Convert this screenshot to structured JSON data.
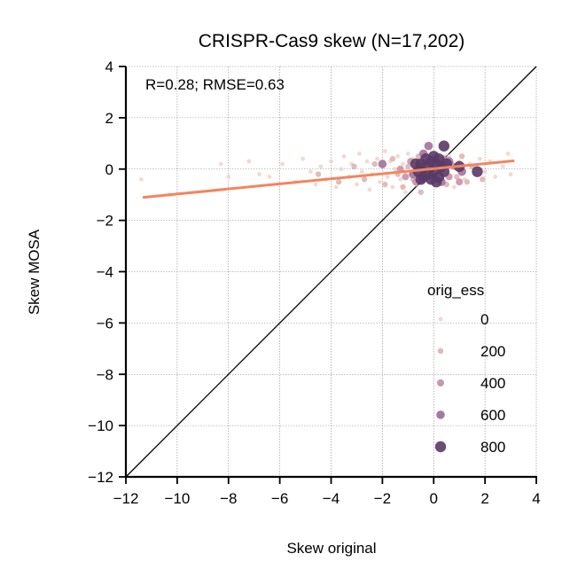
{
  "chart_data": {
    "type": "scatter",
    "title": "CRISPR-Cas9 skew (N=17,202)",
    "xlabel": "Skew original",
    "ylabel": "Skew MOSA",
    "xlim": [
      -12,
      4
    ],
    "ylim": [
      -12,
      4
    ],
    "xticks": [
      -12,
      -10,
      -8,
      -6,
      -4,
      -2,
      0,
      2,
      4
    ],
    "yticks": [
      -12,
      -10,
      -8,
      -6,
      -4,
      -2,
      0,
      2,
      4
    ],
    "xtick_labels": [
      "−12",
      "−10",
      "−8",
      "−6",
      "−4",
      "−2",
      "0",
      "2",
      "4"
    ],
    "ytick_labels": [
      "−12",
      "−10",
      "−8",
      "−6",
      "−4",
      "−2",
      "0",
      "2",
      "4"
    ],
    "grid": true,
    "annotation": "R=0.28; RMSE=0.63",
    "identity_line": {
      "from": [
        -12,
        -12
      ],
      "to": [
        4,
        4
      ],
      "color": "#000000"
    },
    "regression_line": {
      "from": [
        -11.3,
        -1.1
      ],
      "to": [
        3.1,
        0.32
      ],
      "color": "#f4845f"
    },
    "legend": {
      "title": "orig_ess",
      "placement": "center-right",
      "entries": [
        {
          "label": "0",
          "color": "#f0d3c9"
        },
        {
          "label": "200",
          "color": "#dcb0ae"
        },
        {
          "label": "400",
          "color": "#c48ba4"
        },
        {
          "label": "600",
          "color": "#9c6b96"
        },
        {
          "label": "800",
          "color": "#5a3a66"
        }
      ]
    },
    "points": [
      {
        "x": -11.4,
        "y": -0.4,
        "ess": 0
      },
      {
        "x": -10.3,
        "y": -1.0,
        "ess": 0
      },
      {
        "x": -8.3,
        "y": 0.2,
        "ess": 0
      },
      {
        "x": -8.0,
        "y": -0.3,
        "ess": 0
      },
      {
        "x": -7.2,
        "y": 0.3,
        "ess": 0
      },
      {
        "x": -6.8,
        "y": -0.2,
        "ess": 0
      },
      {
        "x": -6.4,
        "y": -0.3,
        "ess": 0
      },
      {
        "x": -5.9,
        "y": 0.2,
        "ess": 0
      },
      {
        "x": -5.4,
        "y": -0.5,
        "ess": 0
      },
      {
        "x": -5.1,
        "y": 0.4,
        "ess": 0
      },
      {
        "x": -4.8,
        "y": -0.1,
        "ess": 0
      },
      {
        "x": -4.6,
        "y": -0.6,
        "ess": 0
      },
      {
        "x": -4.4,
        "y": 0.1,
        "ess": 0
      },
      {
        "x": -4.2,
        "y": -0.4,
        "ess": 0
      },
      {
        "x": -4.0,
        "y": 0.3,
        "ess": 0
      },
      {
        "x": -3.8,
        "y": -0.7,
        "ess": 0
      },
      {
        "x": -3.6,
        "y": 0.0,
        "ess": 0
      },
      {
        "x": -3.5,
        "y": 0.5,
        "ess": 0
      },
      {
        "x": -3.3,
        "y": -0.3,
        "ess": 0
      },
      {
        "x": -3.2,
        "y": 0.2,
        "ess": 0
      },
      {
        "x": -3.0,
        "y": -0.6,
        "ess": 0
      },
      {
        "x": -2.9,
        "y": 0.6,
        "ess": 0
      },
      {
        "x": -2.8,
        "y": -0.1,
        "ess": 0
      },
      {
        "x": -2.6,
        "y": 0.3,
        "ess": 0
      },
      {
        "x": -2.5,
        "y": -0.8,
        "ess": 0
      },
      {
        "x": -2.4,
        "y": -0.2,
        "ess": 0
      },
      {
        "x": -2.2,
        "y": 0.4,
        "ess": 0
      },
      {
        "x": -2.1,
        "y": -0.5,
        "ess": 0
      },
      {
        "x": -2.0,
        "y": 0.1,
        "ess": 0
      },
      {
        "x": -1.9,
        "y": 0.7,
        "ess": 0
      },
      {
        "x": -1.8,
        "y": -0.3,
        "ess": 0
      },
      {
        "x": -1.7,
        "y": 0.3,
        "ess": 0
      },
      {
        "x": -1.6,
        "y": -0.7,
        "ess": 0
      },
      {
        "x": -1.5,
        "y": 0.0,
        "ess": 0
      },
      {
        "x": -1.4,
        "y": 0.5,
        "ess": 0
      },
      {
        "x": -1.3,
        "y": -0.4,
        "ess": 0
      },
      {
        "x": -1.2,
        "y": 0.2,
        "ess": 0
      },
      {
        "x": -1.1,
        "y": -0.9,
        "ess": 0
      },
      {
        "x": -1.0,
        "y": 0.6,
        "ess": 0
      },
      {
        "x": -0.9,
        "y": -0.2,
        "ess": 0
      },
      {
        "x": -0.8,
        "y": 0.4,
        "ess": 0
      },
      {
        "x": -0.7,
        "y": -0.6,
        "ess": 0
      },
      {
        "x": 0.6,
        "y": 0.5,
        "ess": 0
      },
      {
        "x": 0.8,
        "y": -0.7,
        "ess": 0
      },
      {
        "x": 1.0,
        "y": 0.3,
        "ess": 0
      },
      {
        "x": 1.2,
        "y": -0.4,
        "ess": 0
      },
      {
        "x": 1.4,
        "y": 0.2,
        "ess": 0
      },
      {
        "x": 1.6,
        "y": -0.2,
        "ess": 0
      },
      {
        "x": 1.8,
        "y": 0.4,
        "ess": 0
      },
      {
        "x": 2.0,
        "y": -0.1,
        "ess": 0
      },
      {
        "x": 2.2,
        "y": 0.3,
        "ess": 0
      },
      {
        "x": 2.4,
        "y": -0.3,
        "ess": 0
      },
      {
        "x": 2.7,
        "y": 0.1,
        "ess": 0
      },
      {
        "x": 2.9,
        "y": 0.6,
        "ess": 0
      },
      {
        "x": 3.0,
        "y": -0.2,
        "ess": 0
      },
      {
        "x": -4.5,
        "y": -0.2,
        "ess": 200
      },
      {
        "x": -3.7,
        "y": -0.5,
        "ess": 200
      },
      {
        "x": -3.1,
        "y": 0.1,
        "ess": 200
      },
      {
        "x": -2.7,
        "y": -0.4,
        "ess": 200
      },
      {
        "x": -2.3,
        "y": 0.2,
        "ess": 200
      },
      {
        "x": -1.9,
        "y": -0.6,
        "ess": 200
      },
      {
        "x": -1.6,
        "y": 0.4,
        "ess": 200
      },
      {
        "x": -1.4,
        "y": -0.2,
        "ess": 200
      },
      {
        "x": -1.2,
        "y": -0.7,
        "ess": 200
      },
      {
        "x": -1.0,
        "y": 0.1,
        "ess": 200
      },
      {
        "x": -0.8,
        "y": -0.4,
        "ess": 200
      },
      {
        "x": -0.6,
        "y": 0.5,
        "ess": 200
      },
      {
        "x": -0.5,
        "y": -0.9,
        "ess": 200
      },
      {
        "x": 0.5,
        "y": -0.6,
        "ess": 200
      },
      {
        "x": 0.7,
        "y": 0.2,
        "ess": 200
      },
      {
        "x": 0.9,
        "y": -0.3,
        "ess": 200
      },
      {
        "x": 1.1,
        "y": 0.5,
        "ess": 200
      },
      {
        "x": 1.3,
        "y": -0.5,
        "ess": 200
      },
      {
        "x": 1.5,
        "y": 0.1,
        "ess": 200
      },
      {
        "x": 1.9,
        "y": -0.4,
        "ess": 200
      },
      {
        "x": -1.1,
        "y": -0.3,
        "ess": 400
      },
      {
        "x": -0.9,
        "y": 0.3,
        "ess": 400
      },
      {
        "x": -0.7,
        "y": -0.5,
        "ess": 400
      },
      {
        "x": -0.6,
        "y": 0.1,
        "ess": 400
      },
      {
        "x": 0.4,
        "y": 0.4,
        "ess": 400
      },
      {
        "x": 0.6,
        "y": -0.3,
        "ess": 400
      },
      {
        "x": 0.8,
        "y": 0.1,
        "ess": 400
      },
      {
        "x": 1.0,
        "y": -0.5,
        "ess": 400
      },
      {
        "x": -1.3,
        "y": 0.0,
        "ess": 400
      },
      {
        "x": -2.0,
        "y": 0.2,
        "ess": 600
      },
      {
        "x": -0.8,
        "y": -0.2,
        "ess": 600
      },
      {
        "x": -0.4,
        "y": 0.6,
        "ess": 600
      },
      {
        "x": 0.3,
        "y": -0.5,
        "ess": 600
      },
      {
        "x": 0.6,
        "y": 0.3,
        "ess": 600
      },
      {
        "x": 1.1,
        "y": -0.1,
        "ess": 600
      },
      {
        "x": -0.2,
        "y": 0.9,
        "ess": 600
      },
      {
        "x": -0.6,
        "y": -0.1,
        "ess": 800
      },
      {
        "x": -0.5,
        "y": 0.2,
        "ess": 800
      },
      {
        "x": -0.4,
        "y": -0.3,
        "ess": 800
      },
      {
        "x": -0.3,
        "y": 0.1,
        "ess": 800
      },
      {
        "x": -0.2,
        "y": -0.2,
        "ess": 800
      },
      {
        "x": -0.1,
        "y": 0.3,
        "ess": 800
      },
      {
        "x": 0.0,
        "y": -0.1,
        "ess": 800
      },
      {
        "x": 0.1,
        "y": 0.2,
        "ess": 800
      },
      {
        "x": 0.2,
        "y": -0.3,
        "ess": 800
      },
      {
        "x": 0.3,
        "y": 0.1,
        "ess": 800
      },
      {
        "x": 0.4,
        "y": -0.1,
        "ess": 800
      },
      {
        "x": -0.3,
        "y": 0.4,
        "ess": 800
      },
      {
        "x": 0.0,
        "y": 0.5,
        "ess": 800
      },
      {
        "x": 0.2,
        "y": 0.4,
        "ess": 800
      },
      {
        "x": -0.1,
        "y": -0.4,
        "ess": 800
      },
      {
        "x": 0.1,
        "y": -0.5,
        "ess": 800
      },
      {
        "x": 0.5,
        "y": 0.2,
        "ess": 800
      },
      {
        "x": -0.5,
        "y": -0.4,
        "ess": 800
      },
      {
        "x": 0.4,
        "y": 0.9,
        "ess": 800
      },
      {
        "x": 1.7,
        "y": -0.1,
        "ess": 800
      },
      {
        "x": 1.0,
        "y": 0.1,
        "ess": 800
      },
      {
        "x": -0.7,
        "y": 0.2,
        "ess": 800
      }
    ]
  }
}
